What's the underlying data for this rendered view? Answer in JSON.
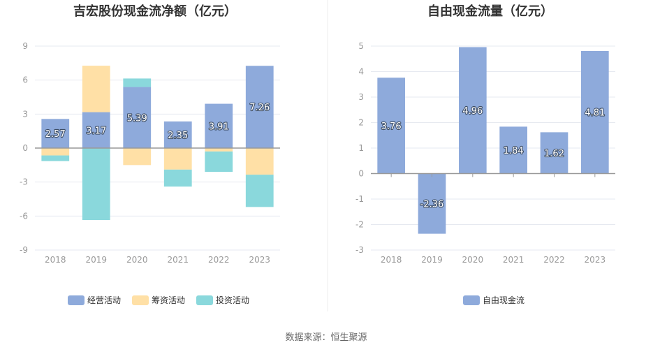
{
  "chart_data": [
    {
      "type": "bar",
      "stacked": true,
      "title": "吉宏股份现金流净额（亿元）",
      "categories": [
        "2018",
        "2019",
        "2020",
        "2021",
        "2022",
        "2023"
      ],
      "ylim": [
        -9,
        9
      ],
      "yticks": [
        "9",
        "6",
        "3",
        "0",
        "-3",
        "-6",
        "-9"
      ],
      "grid": true,
      "legend_position": "bottom",
      "series": [
        {
          "name": "经营活动",
          "color": "#8eaadb",
          "values": [
            2.57,
            3.17,
            5.39,
            2.35,
            3.91,
            7.26
          ],
          "labels": [
            "2.57",
            "3.17",
            "5.39",
            "2.35",
            "3.91",
            "7.26"
          ]
        },
        {
          "name": "筹资活动",
          "color": "#ffe0a6",
          "values": [
            -0.65,
            4.1,
            -1.5,
            -1.9,
            -0.3,
            -2.35
          ],
          "labels": []
        },
        {
          "name": "投资活动",
          "color": "#8ad8dc",
          "values": [
            -0.5,
            -6.35,
            0.75,
            -1.5,
            -1.8,
            -2.85
          ],
          "labels": []
        }
      ]
    },
    {
      "type": "bar",
      "title": "自由现金流量（亿元）",
      "categories": [
        "2018",
        "2019",
        "2020",
        "2021",
        "2022",
        "2023"
      ],
      "ylim": [
        -3,
        5
      ],
      "yticks": [
        "5",
        "4",
        "3",
        "2",
        "1",
        "0",
        "-1",
        "-2",
        "-3"
      ],
      "grid": true,
      "legend_position": "bottom",
      "series": [
        {
          "name": "自由现金流",
          "color": "#8eaadb",
          "values": [
            3.76,
            -2.36,
            4.96,
            1.84,
            1.62,
            4.81
          ],
          "labels": [
            "3.76",
            "-2.36",
            "4.96",
            "1.84",
            "1.62",
            "4.81"
          ]
        }
      ]
    }
  ],
  "source": "数据来源：恒生聚源"
}
